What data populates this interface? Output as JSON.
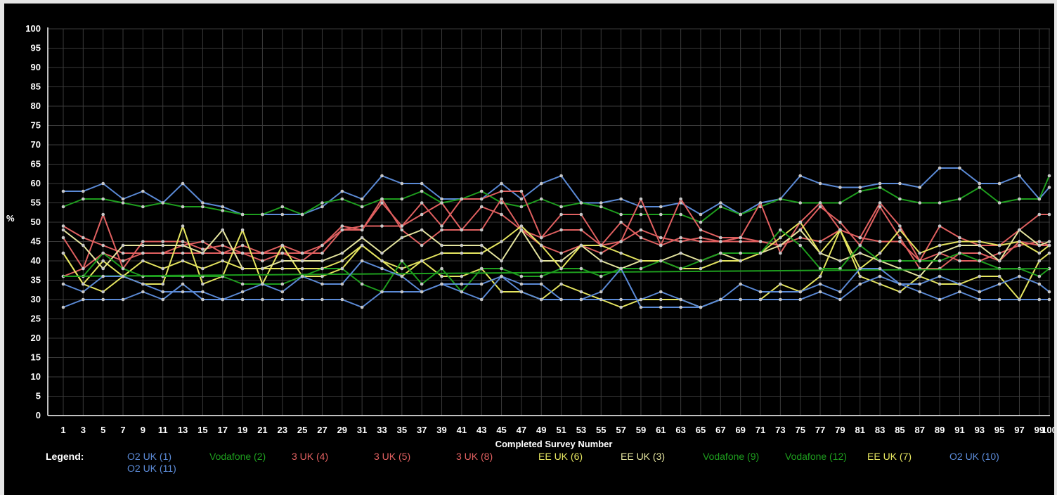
{
  "chart_data": {
    "type": "line",
    "title": "",
    "xlabel": "Completed Survey Number",
    "ylabel": "%",
    "ylim": [
      0,
      100
    ],
    "yticks": [
      0,
      5,
      10,
      15,
      20,
      25,
      30,
      35,
      40,
      45,
      50,
      55,
      60,
      65,
      70,
      75,
      80,
      85,
      90,
      95,
      100
    ],
    "xlim": [
      1,
      100
    ],
    "xtick_labels": [
      "1",
      "3",
      "5",
      "7",
      "9",
      "11",
      "13",
      "15",
      "17",
      "19",
      "21",
      "23",
      "25",
      "27",
      "29",
      "31",
      "33",
      "35",
      "37",
      "39",
      "41",
      "43",
      "45",
      "47",
      "49",
      "51",
      "53",
      "55",
      "57",
      "59",
      "61",
      "63",
      "65",
      "67",
      "69",
      "71",
      "73",
      "75",
      "77",
      "79",
      "81",
      "83",
      "85",
      "87",
      "89",
      "91",
      "93",
      "95",
      "97",
      "99",
      "100"
    ],
    "grid": true,
    "legend": {
      "title": "Legend:",
      "placement": "bottom",
      "entries": [
        {
          "name": "O2 UK (1)",
          "color": "#5b8ad6"
        },
        {
          "name": "Vodafone (2)",
          "color": "#1e9e1e"
        },
        {
          "name": "3 UK (4)",
          "color": "#e06060"
        },
        {
          "name": "3 UK (5)",
          "color": "#e06060"
        },
        {
          "name": "3 UK (8)",
          "color": "#e06060"
        },
        {
          "name": "EE UK (6)",
          "color": "#e6e660"
        },
        {
          "name": "EE UK (3)",
          "color": "#e6e6a0"
        },
        {
          "name": "Vodafone (9)",
          "color": "#1e9e1e"
        },
        {
          "name": "Vodafone (12)",
          "color": "#1e9e1e"
        },
        {
          "name": "EE UK (7)",
          "color": "#e6e660"
        },
        {
          "name": "O2 UK (10)",
          "color": "#5b8ad6"
        },
        {
          "name": "O2 UK (11)",
          "color": "#5b8ad6"
        }
      ]
    },
    "series": [
      {
        "color": "#5b8ad6",
        "x": [
          1,
          3,
          5,
          7,
          9,
          11,
          13,
          15,
          17,
          19,
          21,
          23,
          25,
          27,
          29,
          31,
          33,
          35,
          37,
          39,
          41,
          43,
          45,
          47,
          49,
          51,
          53,
          55,
          57,
          59,
          61,
          63,
          65,
          67,
          69,
          71,
          73,
          75,
          77,
          79,
          81,
          83,
          85,
          87,
          89,
          91,
          93,
          95,
          97,
          99,
          100
        ],
        "values": [
          58,
          58,
          60,
          56,
          58,
          55,
          60,
          55,
          54,
          52,
          52,
          52,
          52,
          54,
          58,
          56,
          62,
          60,
          60,
          56,
          56,
          56,
          60,
          56,
          60,
          62,
          55,
          55,
          56,
          54,
          54,
          55,
          52,
          55,
          52,
          55,
          56,
          62,
          60,
          59,
          59,
          60,
          60,
          59,
          64,
          64,
          60,
          60,
          62,
          56,
          59
        ]
      },
      {
        "color": "#1e9e1e",
        "x": [
          1,
          3,
          5,
          7,
          9,
          11,
          13,
          15,
          17,
          19,
          21,
          23,
          25,
          27,
          29,
          31,
          33,
          35,
          37,
          39,
          41,
          43,
          45,
          47,
          49,
          51,
          53,
          55,
          57,
          59,
          61,
          63,
          65,
          67,
          69,
          71,
          73,
          75,
          77,
          79,
          81,
          83,
          85,
          87,
          89,
          91,
          93,
          95,
          97,
          99,
          100
        ],
        "values": [
          54,
          56,
          56,
          55,
          54,
          55,
          54,
          54,
          53,
          52,
          52,
          54,
          52,
          55,
          56,
          54,
          56,
          56,
          58,
          55,
          56,
          58,
          55,
          54,
          56,
          54,
          55,
          54,
          52,
          52,
          52,
          52,
          50,
          54,
          52,
          54,
          56,
          55,
          55,
          55,
          58,
          59,
          56,
          55,
          55,
          56,
          59,
          55,
          56,
          56,
          62
        ]
      },
      {
        "color": "#e06060",
        "x": [
          1,
          3,
          5,
          7,
          9,
          11,
          13,
          15,
          17,
          19,
          21,
          23,
          25,
          27,
          29,
          31,
          33,
          35,
          37,
          39,
          41,
          43,
          45,
          47,
          49,
          51,
          53,
          55,
          57,
          59,
          61,
          63,
          65,
          67,
          69,
          71,
          73,
          75,
          77,
          79,
          81,
          83,
          85,
          87,
          89,
          91,
          93,
          95,
          97,
          99,
          100
        ],
        "values": [
          46,
          38,
          52,
          38,
          45,
          45,
          45,
          43,
          44,
          42,
          40,
          42,
          40,
          44,
          49,
          48,
          55,
          49,
          55,
          49,
          56,
          56,
          58,
          58,
          46,
          52,
          52,
          44,
          50,
          46,
          44,
          56,
          48,
          46,
          46,
          55,
          42,
          50,
          55,
          48,
          46,
          55,
          49,
          40,
          49,
          46,
          44,
          44,
          48,
          52,
          52
        ]
      },
      {
        "color": "#e06060",
        "x": [
          1,
          3,
          5,
          7,
          9,
          11,
          13,
          15,
          17,
          19,
          21,
          23,
          25,
          27,
          29,
          31,
          33,
          35,
          37,
          39,
          41,
          43,
          45,
          47,
          49,
          51,
          53,
          55,
          57,
          59,
          61,
          63,
          65,
          67,
          69,
          71,
          73,
          75,
          77,
          79,
          81,
          83,
          85,
          87,
          89,
          91,
          93,
          95,
          97,
          99,
          100
        ],
        "values": [
          49,
          46,
          44,
          42,
          42,
          42,
          42,
          42,
          42,
          42,
          42,
          42,
          42,
          42,
          48,
          49,
          49,
          49,
          52,
          55,
          48,
          48,
          56,
          48,
          46,
          48,
          48,
          44,
          45,
          56,
          44,
          46,
          45,
          45,
          45,
          45,
          44,
          48,
          54,
          50,
          44,
          54,
          46,
          38,
          38,
          42,
          42,
          40,
          45,
          44,
          44
        ]
      },
      {
        "color": "#e06060",
        "x": [
          1,
          3,
          5,
          7,
          9,
          11,
          13,
          15,
          17,
          19,
          21,
          23,
          25,
          27,
          29,
          31,
          33,
          35,
          37,
          39,
          41,
          43,
          45,
          47,
          49,
          51,
          53,
          55,
          57,
          59,
          61,
          63,
          65,
          67,
          69,
          71,
          73,
          75,
          77,
          79,
          81,
          83,
          85,
          87,
          89,
          91,
          93,
          95,
          97,
          99,
          100
        ],
        "values": [
          36,
          38,
          42,
          40,
          42,
          42,
          44,
          45,
          42,
          44,
          42,
          44,
          42,
          44,
          48,
          48,
          56,
          48,
          44,
          48,
          48,
          54,
          52,
          48,
          44,
          42,
          44,
          42,
          45,
          48,
          46,
          45,
          46,
          45,
          46,
          45,
          44,
          46,
          45,
          48,
          46,
          45,
          45,
          40,
          42,
          40,
          40,
          42,
          44,
          45,
          44
        ]
      },
      {
        "color": "#e6e660",
        "x": [
          1,
          3,
          5,
          7,
          9,
          11,
          13,
          15,
          17,
          19,
          21,
          23,
          25,
          27,
          29,
          31,
          33,
          35,
          37,
          39,
          41,
          43,
          45,
          47,
          49,
          51,
          53,
          55,
          57,
          59,
          61,
          63,
          65,
          67,
          69,
          71,
          73,
          75,
          77,
          79,
          81,
          83,
          85,
          87,
          89,
          91,
          93,
          95,
          97,
          99,
          100
        ],
        "values": [
          42,
          34,
          32,
          36,
          34,
          34,
          49,
          34,
          36,
          48,
          34,
          44,
          36,
          36,
          38,
          44,
          40,
          38,
          40,
          36,
          36,
          38,
          32,
          32,
          30,
          34,
          32,
          30,
          28,
          30,
          30,
          30,
          28,
          30,
          30,
          30,
          34,
          32,
          36,
          48,
          36,
          34,
          32,
          36,
          34,
          34,
          36,
          36,
          30,
          40,
          42
        ]
      },
      {
        "color": "#e6e6a0",
        "x": [
          1,
          3,
          5,
          7,
          9,
          11,
          13,
          15,
          17,
          19,
          21,
          23,
          25,
          27,
          29,
          31,
          33,
          35,
          37,
          39,
          41,
          43,
          45,
          47,
          49,
          51,
          53,
          55,
          57,
          59,
          61,
          63,
          65,
          67,
          69,
          71,
          73,
          75,
          77,
          79,
          81,
          83,
          85,
          87,
          89,
          91,
          93,
          95,
          97,
          99,
          100
        ],
        "values": [
          48,
          44,
          38,
          44,
          44,
          44,
          44,
          42,
          48,
          38,
          38,
          40,
          40,
          40,
          42,
          46,
          42,
          46,
          48,
          44,
          44,
          44,
          40,
          48,
          40,
          40,
          44,
          40,
          38,
          40,
          40,
          42,
          40,
          42,
          40,
          42,
          44,
          48,
          42,
          40,
          42,
          40,
          38,
          36,
          42,
          44,
          44,
          40,
          48,
          44,
          45
        ]
      },
      {
        "color": "#e6e660",
        "x": [
          1,
          3,
          5,
          7,
          9,
          11,
          13,
          15,
          17,
          19,
          21,
          23,
          25,
          27,
          29,
          31,
          33,
          35,
          37,
          39,
          41,
          43,
          45,
          47,
          49,
          51,
          53,
          55,
          57,
          59,
          61,
          63,
          65,
          67,
          69,
          71,
          73,
          75,
          77,
          79,
          81,
          83,
          85,
          87,
          89,
          91,
          93,
          95,
          97,
          99,
          100
        ],
        "values": [
          42,
          34,
          40,
          36,
          40,
          38,
          40,
          38,
          40,
          38,
          38,
          38,
          38,
          38,
          40,
          44,
          40,
          36,
          40,
          42,
          42,
          42,
          45,
          49,
          44,
          38,
          44,
          44,
          42,
          40,
          40,
          38,
          38,
          40,
          40,
          42,
          46,
          50,
          42,
          48,
          38,
          42,
          48,
          42,
          44,
          45,
          45,
          44,
          45,
          42,
          44
        ]
      },
      {
        "color": "#1e9e1e",
        "x": [
          1,
          3,
          5,
          7,
          9,
          11,
          13,
          15,
          17,
          19,
          21,
          23,
          25,
          27,
          29,
          31,
          33,
          35,
          37,
          39,
          41,
          43,
          45,
          47,
          49,
          51,
          53,
          55,
          57,
          59,
          61,
          63,
          65,
          67,
          69,
          71,
          73,
          75,
          77,
          79,
          81,
          83,
          85,
          87,
          89,
          91,
          93,
          95,
          97,
          99,
          100
        ],
        "values": [
          36,
          36,
          42,
          38,
          36,
          36,
          36,
          36,
          36,
          34,
          34,
          34,
          36,
          38,
          38,
          34,
          32,
          40,
          34,
          38,
          32,
          38,
          38,
          36,
          36,
          38,
          38,
          36,
          38,
          38,
          40,
          38,
          40,
          42,
          42,
          42,
          48,
          44,
          38,
          38,
          44,
          40,
          40,
          40,
          40,
          42,
          40,
          38,
          38,
          36,
          38
        ]
      },
      {
        "color": "#1e9e1e",
        "x": [
          1,
          100
        ],
        "values": [
          36,
          38
        ]
      },
      {
        "color": "#5b8ad6",
        "x": [
          1,
          3,
          5,
          7,
          9,
          11,
          13,
          15,
          17,
          19,
          21,
          23,
          25,
          27,
          29,
          31,
          33,
          35,
          37,
          39,
          41,
          43,
          45,
          47,
          49,
          51,
          53,
          55,
          57,
          59,
          61,
          63,
          65,
          67,
          69,
          71,
          73,
          75,
          77,
          79,
          81,
          83,
          85,
          87,
          89,
          91,
          93,
          95,
          97,
          99,
          100
        ],
        "values": [
          34,
          32,
          36,
          36,
          34,
          32,
          32,
          32,
          30,
          32,
          34,
          32,
          36,
          34,
          34,
          40,
          38,
          36,
          32,
          34,
          32,
          30,
          36,
          34,
          34,
          30,
          30,
          32,
          38,
          28,
          28,
          28,
          28,
          30,
          30,
          30,
          30,
          30,
          32,
          30,
          34,
          36,
          34,
          32,
          30,
          32,
          30,
          30,
          30,
          30,
          30
        ]
      },
      {
        "color": "#5b8ad6",
        "x": [
          1,
          3,
          5,
          7,
          9,
          11,
          13,
          15,
          17,
          19,
          21,
          23,
          25,
          27,
          29,
          31,
          33,
          35,
          37,
          39,
          41,
          43,
          45,
          47,
          49,
          51,
          53,
          55,
          57,
          59,
          61,
          63,
          65,
          67,
          69,
          71,
          73,
          75,
          77,
          79,
          81,
          83,
          85,
          87,
          89,
          91,
          93,
          95,
          97,
          99,
          100
        ],
        "values": [
          28,
          30,
          30,
          30,
          32,
          30,
          34,
          30,
          30,
          30,
          30,
          30,
          30,
          30,
          30,
          28,
          32,
          32,
          32,
          34,
          34,
          34,
          36,
          32,
          30,
          30,
          30,
          30,
          30,
          30,
          32,
          30,
          28,
          30,
          34,
          32,
          32,
          32,
          34,
          32,
          38,
          38,
          34,
          34,
          36,
          34,
          32,
          34,
          36,
          34,
          32
        ]
      }
    ]
  }
}
